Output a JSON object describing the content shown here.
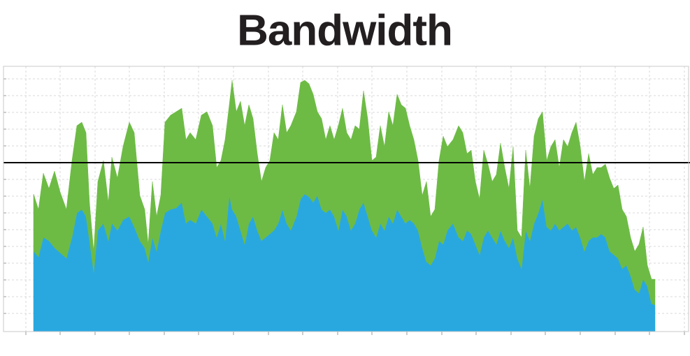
{
  "chart_data": {
    "type": "stacked_area",
    "title": "Bandwidth",
    "x": [
      43,
      50,
      57,
      65,
      73,
      81,
      90,
      98,
      105,
      112,
      118,
      123,
      129,
      135,
      143,
      150,
      155,
      163,
      171,
      180,
      187,
      195,
      202,
      207,
      213,
      219,
      225,
      231,
      239,
      247,
      255,
      261,
      267,
      275,
      283,
      291,
      299,
      305,
      311,
      317,
      323,
      327,
      333,
      339,
      345,
      351,
      357,
      363,
      369,
      375,
      381,
      387,
      393,
      399,
      405,
      411,
      419,
      425,
      431,
      437,
      443,
      449,
      455,
      461,
      467,
      473,
      479,
      485,
      491,
      497,
      503,
      509,
      515,
      521,
      527,
      533,
      539,
      545,
      551,
      557,
      563,
      569,
      575,
      581,
      587,
      593,
      599,
      605,
      611,
      617,
      623,
      629,
      635,
      643,
      651,
      657,
      663,
      669,
      675,
      681,
      687,
      693,
      699,
      705,
      711,
      717,
      723,
      729,
      735,
      741,
      747,
      753,
      759,
      765,
      771,
      777,
      783,
      789,
      795,
      801,
      807,
      813,
      819,
      825,
      831,
      837,
      843,
      849,
      855,
      861,
      867,
      873,
      879,
      885,
      891,
      897,
      903,
      909,
      915,
      921,
      927,
      932
    ],
    "series": [
      {
        "color": "#29a8e0",
        "values": [
          115,
          107,
          135,
          130,
          120,
          113,
          105,
          135,
          170,
          175,
          165,
          130,
          85,
          145,
          155,
          130,
          155,
          145,
          160,
          165,
          150,
          130,
          120,
          100,
          135,
          115,
          145,
          170,
          175,
          177,
          185,
          155,
          160,
          155,
          175,
          165,
          155,
          135,
          155,
          130,
          195,
          175,
          165,
          145,
          125,
          155,
          165,
          145,
          130,
          135,
          140,
          145,
          155,
          175,
          155,
          145,
          165,
          190,
          197,
          193,
          185,
          195,
          175,
          170,
          175,
          165,
          145,
          175,
          165,
          145,
          155,
          175,
          185,
          165,
          145,
          135,
          155,
          145,
          165,
          155,
          175,
          165,
          155,
          160,
          155,
          145,
          120,
          100,
          95,
          105,
          130,
          125,
          145,
          155,
          135,
          130,
          145,
          140,
          125,
          110,
          135,
          145,
          135,
          125,
          145,
          130,
          120,
          135,
          105,
          90,
          145,
          130,
          155,
          170,
          190,
          150,
          145,
          155,
          145,
          150,
          155,
          145,
          150,
          135,
          115,
          130,
          135,
          135,
          140,
          135,
          115,
          110,
          105,
          90,
          95,
          80,
          60,
          55,
          75,
          65,
          40,
          38
        ]
      },
      {
        "color": "#6dbb45",
        "values": [
          82,
          68,
          92,
          75,
          110,
          87,
          70,
          110,
          125,
          125,
          120,
          55,
          30,
          70,
          90,
          55,
          95,
          75,
          105,
          135,
          135,
          65,
          55,
          25,
          80,
          50,
          50,
          130,
          135,
          138,
          135,
          120,
          125,
          120,
          135,
          150,
          140,
          100,
          90,
          145,
          130,
          185,
          150,
          185,
          170,
          170,
          140,
          110,
          85,
          100,
          105,
          140,
          120,
          150,
          130,
          150,
          150,
          167,
          163,
          162,
          155,
          120,
          130,
          105,
          120,
          110,
          150,
          145,
          120,
          130,
          140,
          115,
          160,
          140,
          100,
          115,
          140,
          120,
          150,
          140,
          165,
          160,
          165,
          135,
          120,
          100,
          75,
          115,
          70,
          70,
          115,
          155,
          120,
          120,
          160,
          155,
          110,
          120,
          90,
          80,
          125,
          95,
          80,
          100,
          125,
          105,
          85,
          130,
          40,
          45,
          115,
          75,
          125,
          135,
          125,
          95,
          120,
          120,
          90,
          125,
          110,
          140,
          150,
          130,
          100,
          125,
          90,
          100,
          95,
          105,
          105,
          95,
          105,
          85,
          70,
          55,
          55,
          70,
          75,
          30,
          35,
          37
        ]
      }
    ],
    "xlim": [
      0,
      980
    ],
    "xticks": [
      32,
      81,
      131,
      180,
      230,
      279,
      329,
      379,
      428,
      478,
      527,
      577,
      627,
      676,
      726,
      775,
      825,
      875,
      924,
      974
    ],
    "ylim": [
      0,
      380
    ],
    "yticks": [
      26,
      50,
      74,
      98,
      122,
      146,
      170,
      194,
      218,
      242,
      266,
      290,
      314,
      338,
      362
    ],
    "grid": true,
    "threshold": 242,
    "threshold_color": "#000000"
  }
}
